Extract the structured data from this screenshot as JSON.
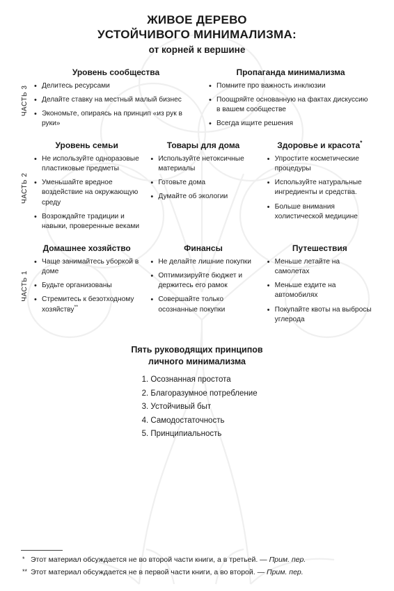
{
  "title_line1": "ЖИВОЕ ДЕРЕВО",
  "title_line2": "УСТОЙЧИВОГО МИНИМАЛИЗМА:",
  "subtitle": "от корней к вершине",
  "part3": {
    "label": "ЧАСТЬ 3",
    "cols": [
      {
        "title": "Уровень сообщества",
        "items": [
          "Делитесь ресурсами",
          "Делайте ставку на местный малый бизнес",
          "Экономьте, опираясь на принцип «из рук в руки»"
        ]
      },
      {
        "title": "Пропаганда минимализма",
        "items": [
          "Помните про важность инклюзии",
          "Поощряйте основанную на фактах дискуссию в вашем сообществе",
          "Всегда ищите решения"
        ]
      }
    ]
  },
  "part2": {
    "label": "ЧАСТЬ 2",
    "cols": [
      {
        "title": "Уровень семьи",
        "items": [
          "Не используйте одноразовые пластиковые предметы",
          "Уменьшайте вредное воздействие на окружающую среду",
          "Возрождайте традиции и навыки, проверенные веками"
        ]
      },
      {
        "title": "Товары для дома",
        "items": [
          "Используйте нетоксичные материалы",
          "Готовьте дома",
          "Думайте об экологии"
        ]
      },
      {
        "title": "Здоровье и красота",
        "title_sup": "*",
        "items": [
          "Упростите косметические процедуры",
          "Используйте натуральные ингредиенты и средства.",
          "Больше внимания холистической медицине"
        ]
      }
    ]
  },
  "part1": {
    "label": "ЧАСТЬ 1",
    "cols": [
      {
        "title": "Домашнее хозяйство",
        "items": [
          "Чаще занимайтесь уборкой в доме",
          "Будьте организованы",
          "Стремитесь к безотходному хозяйству"
        ],
        "item_sups": {
          "2": "**"
        }
      },
      {
        "title": "Финансы",
        "items": [
          "Не делайте лишние покупки",
          "Оптимизируйте бюджет и держитесь его рамок",
          "Совершайте только осознанные покупки"
        ]
      },
      {
        "title": "Путешествия",
        "items": [
          "Меньше летайте на самолетах",
          "Меньше ездите на автомобилях",
          "Покупайте квоты на выбросы углерода"
        ]
      }
    ]
  },
  "principles": {
    "title_l1": "Пять руководящих принципов",
    "title_l2": "личного минимализма",
    "items": [
      "Осознанная простота",
      "Благоразумное потребление",
      "Устойчивый быт",
      "Самодостаточность",
      "Принципиальность"
    ]
  },
  "footnotes": [
    {
      "marker": "*",
      "text": "Этот материал обсуждается не во второй части книги, а в третьей. — ",
      "tail": "Прим. пер."
    },
    {
      "marker": "**",
      "text": "Этот материал обсуждается не в первой части книги, а во второй. — ",
      "tail": "Прим. пер."
    }
  ]
}
